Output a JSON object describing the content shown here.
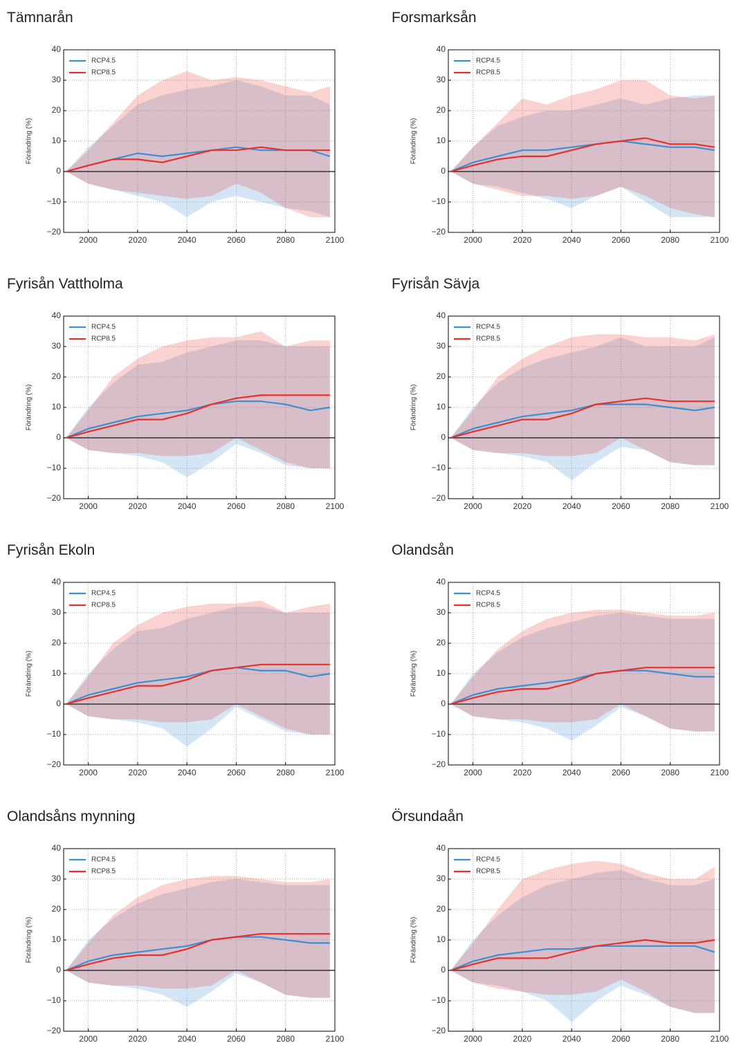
{
  "chart_data": [
    {
      "type": "line",
      "title": "Tämnarån",
      "ylabel": "Förändring (%)",
      "legend": "upper left",
      "grid": true,
      "hline": 0,
      "x": [
        1991,
        2000,
        2010,
        2020,
        2030,
        2040,
        2050,
        2060,
        2070,
        2080,
        2090,
        2098
      ],
      "xlim": [
        1990,
        2100
      ],
      "xticks": [
        2000,
        2020,
        2040,
        2060,
        2080,
        2100
      ],
      "ylim": [
        -20,
        40
      ],
      "yticks": [
        {
          "value": -20,
          "label": "−20"
        },
        {
          "value": -10,
          "label": "−10"
        },
        0,
        10,
        20,
        30,
        40
      ],
      "series": [
        {
          "name": "RCP4.5",
          "color": "#3b8fd4",
          "values": [
            0,
            2,
            4,
            6,
            5,
            6,
            7,
            8,
            7,
            7,
            7,
            5
          ],
          "upper": [
            0,
            8,
            15,
            22,
            25,
            27,
            28,
            30,
            28,
            25,
            25,
            22
          ],
          "lower": [
            0,
            -4,
            -6,
            -8,
            -10,
            -15,
            -10,
            -8,
            -10,
            -12,
            -13,
            -15
          ]
        },
        {
          "name": "RCP8.5",
          "color": "#e8302a",
          "values": [
            0,
            2,
            4,
            4,
            3,
            5,
            7,
            7,
            8,
            7,
            7,
            7
          ],
          "upper": [
            0,
            7,
            16,
            25,
            30,
            33,
            30,
            31,
            30,
            28,
            26,
            28
          ],
          "lower": [
            0,
            -4,
            -6,
            -7,
            -8,
            -9,
            -8,
            -4,
            -7,
            -12,
            -15,
            -15
          ]
        }
      ]
    },
    {
      "type": "line",
      "title": "Forsmarksån",
      "ylabel": "Förändring (%)",
      "legend": "upper left",
      "grid": true,
      "hline": 0,
      "x": [
        1991,
        2000,
        2010,
        2020,
        2030,
        2040,
        2050,
        2060,
        2070,
        2080,
        2090,
        2098
      ],
      "xlim": [
        1990,
        2100
      ],
      "xticks": [
        2000,
        2020,
        2040,
        2060,
        2080,
        2100
      ],
      "ylim": [
        -20,
        40
      ],
      "yticks": [
        {
          "value": -20,
          "label": "−20"
        },
        {
          "value": -10,
          "label": "−10"
        },
        0,
        10,
        20,
        30,
        40
      ],
      "series": [
        {
          "name": "RCP4.5",
          "color": "#3b8fd4",
          "values": [
            0,
            3,
            5,
            7,
            7,
            8,
            9,
            10,
            9,
            8,
            8,
            7
          ],
          "upper": [
            0,
            8,
            15,
            18,
            20,
            20,
            22,
            24,
            22,
            24,
            25,
            25
          ],
          "lower": [
            0,
            -4,
            -5,
            -7,
            -9,
            -12,
            -8,
            -5,
            -10,
            -15,
            -15,
            -15
          ]
        },
        {
          "name": "RCP8.5",
          "color": "#e8302a",
          "values": [
            0,
            2,
            4,
            5,
            5,
            7,
            9,
            10,
            11,
            9,
            9,
            8
          ],
          "upper": [
            0,
            8,
            16,
            24,
            22,
            25,
            27,
            30,
            30,
            25,
            24,
            25
          ],
          "lower": [
            0,
            -4,
            -6,
            -8,
            -8,
            -9,
            -8,
            -5,
            -8,
            -12,
            -14,
            -15
          ]
        }
      ]
    },
    {
      "type": "line",
      "title": "Fyrisån Vattholma",
      "ylabel": "Förändring (%)",
      "legend": "upper left",
      "grid": true,
      "hline": 0,
      "x": [
        1991,
        2000,
        2010,
        2020,
        2030,
        2040,
        2050,
        2060,
        2070,
        2080,
        2090,
        2098
      ],
      "xlim": [
        1990,
        2100
      ],
      "xticks": [
        2000,
        2020,
        2040,
        2060,
        2080,
        2100
      ],
      "ylim": [
        -20,
        40
      ],
      "yticks": [
        {
          "value": -20,
          "label": "−20"
        },
        {
          "value": -10,
          "label": "−10"
        },
        0,
        10,
        20,
        30,
        40
      ],
      "series": [
        {
          "name": "RCP4.5",
          "color": "#3b8fd4",
          "values": [
            0,
            3,
            5,
            7,
            8,
            9,
            11,
            12,
            12,
            11,
            9,
            10
          ],
          "upper": [
            0,
            10,
            18,
            24,
            25,
            28,
            30,
            32,
            32,
            30,
            30,
            30
          ],
          "lower": [
            0,
            -4,
            -5,
            -6,
            -8,
            -13,
            -8,
            -2,
            -5,
            -9,
            -10,
            -10
          ]
        },
        {
          "name": "RCP8.5",
          "color": "#e8302a",
          "values": [
            0,
            2,
            4,
            6,
            6,
            8,
            11,
            13,
            14,
            14,
            14,
            14
          ],
          "upper": [
            0,
            9,
            20,
            26,
            30,
            32,
            33,
            33,
            35,
            30,
            32,
            32
          ],
          "lower": [
            0,
            -4,
            -5,
            -5,
            -6,
            -6,
            -5,
            0,
            -4,
            -8,
            -10,
            -10
          ]
        }
      ]
    },
    {
      "type": "line",
      "title": "Fyrisån Sävja",
      "ylabel": "Förändring (%)",
      "legend": "upper left",
      "grid": true,
      "hline": 0,
      "x": [
        1991,
        2000,
        2010,
        2020,
        2030,
        2040,
        2050,
        2060,
        2070,
        2080,
        2090,
        2098
      ],
      "xlim": [
        1990,
        2100
      ],
      "xticks": [
        2000,
        2020,
        2040,
        2060,
        2080,
        2100
      ],
      "ylim": [
        -20,
        40
      ],
      "yticks": [
        {
          "value": -20,
          "label": "−20"
        },
        {
          "value": -10,
          "label": "−10"
        },
        0,
        10,
        20,
        30,
        40
      ],
      "series": [
        {
          "name": "RCP4.5",
          "color": "#3b8fd4",
          "values": [
            0,
            3,
            5,
            7,
            8,
            9,
            11,
            11,
            11,
            10,
            9,
            10
          ],
          "upper": [
            0,
            10,
            18,
            23,
            26,
            28,
            30,
            33,
            30,
            30,
            30,
            33
          ],
          "lower": [
            0,
            -4,
            -5,
            -6,
            -8,
            -14,
            -8,
            -3,
            -4,
            -8,
            -9,
            -9
          ]
        },
        {
          "name": "RCP8.5",
          "color": "#e8302a",
          "values": [
            0,
            2,
            4,
            6,
            6,
            8,
            11,
            12,
            13,
            12,
            12,
            12
          ],
          "upper": [
            0,
            9,
            20,
            26,
            30,
            33,
            34,
            34,
            33,
            33,
            32,
            34
          ],
          "lower": [
            0,
            -4,
            -5,
            -5,
            -6,
            -6,
            -5,
            0,
            -4,
            -8,
            -9,
            -9
          ]
        }
      ]
    },
    {
      "type": "line",
      "title": "Fyrisån Ekoln",
      "ylabel": "Förändring (%)",
      "legend": "upper left",
      "grid": true,
      "hline": 0,
      "x": [
        1991,
        2000,
        2010,
        2020,
        2030,
        2040,
        2050,
        2060,
        2070,
        2080,
        2090,
        2098
      ],
      "xlim": [
        1990,
        2100
      ],
      "xticks": [
        2000,
        2020,
        2040,
        2060,
        2080,
        2100
      ],
      "ylim": [
        -20,
        40
      ],
      "yticks": [
        {
          "value": -20,
          "label": "−20"
        },
        {
          "value": -10,
          "label": "−10"
        },
        0,
        10,
        20,
        30,
        40
      ],
      "series": [
        {
          "name": "RCP4.5",
          "color": "#3b8fd4",
          "values": [
            0,
            3,
            5,
            7,
            8,
            9,
            11,
            12,
            11,
            11,
            9,
            10
          ],
          "upper": [
            0,
            10,
            18,
            24,
            25,
            28,
            30,
            32,
            32,
            30,
            30,
            30
          ],
          "lower": [
            0,
            -4,
            -5,
            -6,
            -8,
            -14,
            -8,
            -1,
            -5,
            -9,
            -10,
            -10
          ]
        },
        {
          "name": "RCP8.5",
          "color": "#e8302a",
          "values": [
            0,
            2,
            4,
            6,
            6,
            8,
            11,
            12,
            13,
            13,
            13,
            13
          ],
          "upper": [
            0,
            9,
            20,
            26,
            30,
            32,
            33,
            33,
            34,
            30,
            32,
            33
          ],
          "lower": [
            0,
            -4,
            -5,
            -5,
            -6,
            -6,
            -5,
            0,
            -4,
            -8,
            -10,
            -10
          ]
        }
      ]
    },
    {
      "type": "line",
      "title": "Olandsån",
      "ylabel": "Förändring (%)",
      "legend": "upper left",
      "grid": true,
      "hline": 0,
      "x": [
        1991,
        2000,
        2010,
        2020,
        2030,
        2040,
        2050,
        2060,
        2070,
        2080,
        2090,
        2098
      ],
      "xlim": [
        1990,
        2100
      ],
      "xticks": [
        2000,
        2020,
        2040,
        2060,
        2080,
        2100
      ],
      "ylim": [
        -20,
        40
      ],
      "yticks": [
        {
          "value": -20,
          "label": "−20"
        },
        {
          "value": -10,
          "label": "−10"
        },
        0,
        10,
        20,
        30,
        40
      ],
      "series": [
        {
          "name": "RCP4.5",
          "color": "#3b8fd4",
          "values": [
            0,
            3,
            5,
            6,
            7,
            8,
            10,
            11,
            11,
            10,
            9,
            9
          ],
          "upper": [
            0,
            10,
            17,
            22,
            25,
            27,
            29,
            30,
            29,
            28,
            28,
            28
          ],
          "lower": [
            0,
            -4,
            -5,
            -6,
            -8,
            -12,
            -7,
            -1,
            -4,
            -8,
            -9,
            -9
          ]
        },
        {
          "name": "RCP8.5",
          "color": "#e8302a",
          "values": [
            0,
            2,
            4,
            5,
            5,
            7,
            10,
            11,
            12,
            12,
            12,
            12
          ],
          "upper": [
            0,
            9,
            18,
            24,
            28,
            30,
            31,
            31,
            30,
            29,
            29,
            30
          ],
          "lower": [
            0,
            -4,
            -5,
            -5,
            -6,
            -6,
            -5,
            0,
            -4,
            -8,
            -9,
            -9
          ]
        }
      ]
    },
    {
      "type": "line",
      "title": "Olandsåns mynning",
      "ylabel": "Förändring (%)",
      "legend": "upper left",
      "grid": true,
      "hline": 0,
      "x": [
        1991,
        2000,
        2010,
        2020,
        2030,
        2040,
        2050,
        2060,
        2070,
        2080,
        2090,
        2098
      ],
      "xlim": [
        1990,
        2100
      ],
      "xticks": [
        2000,
        2020,
        2040,
        2060,
        2080,
        2100
      ],
      "ylim": [
        -20,
        40
      ],
      "yticks": [
        {
          "value": -20,
          "label": "−20"
        },
        {
          "value": -10,
          "label": "−10"
        },
        0,
        10,
        20,
        30,
        40
      ],
      "series": [
        {
          "name": "RCP4.5",
          "color": "#3b8fd4",
          "values": [
            0,
            3,
            5,
            6,
            7,
            8,
            10,
            11,
            11,
            10,
            9,
            9
          ],
          "upper": [
            0,
            10,
            17,
            22,
            25,
            27,
            29,
            30,
            29,
            28,
            28,
            28
          ],
          "lower": [
            0,
            -4,
            -5,
            -6,
            -8,
            -12,
            -7,
            -1,
            -4,
            -8,
            -9,
            -9
          ]
        },
        {
          "name": "RCP8.5",
          "color": "#e8302a",
          "values": [
            0,
            2,
            4,
            5,
            5,
            7,
            10,
            11,
            12,
            12,
            12,
            12
          ],
          "upper": [
            0,
            9,
            18,
            24,
            28,
            30,
            31,
            31,
            30,
            29,
            29,
            30
          ],
          "lower": [
            0,
            -4,
            -5,
            -5,
            -6,
            -6,
            -5,
            0,
            -4,
            -8,
            -9,
            -9
          ]
        }
      ]
    },
    {
      "type": "line",
      "title": "Örsundaån",
      "ylabel": "Förändring (%)",
      "legend": "upper left",
      "grid": true,
      "hline": 0,
      "x": [
        1991,
        2000,
        2010,
        2020,
        2030,
        2040,
        2050,
        2060,
        2070,
        2080,
        2090,
        2098
      ],
      "xlim": [
        1990,
        2100
      ],
      "xticks": [
        2000,
        2020,
        2040,
        2060,
        2080,
        2100
      ],
      "ylim": [
        -20,
        40
      ],
      "yticks": [
        {
          "value": -20,
          "label": "−20"
        },
        {
          "value": -10,
          "label": "−10"
        },
        0,
        10,
        20,
        30,
        40
      ],
      "series": [
        {
          "name": "RCP4.5",
          "color": "#3b8fd4",
          "values": [
            0,
            3,
            5,
            6,
            7,
            7,
            8,
            8,
            8,
            8,
            8,
            6
          ],
          "upper": [
            0,
            10,
            18,
            24,
            28,
            30,
            32,
            33,
            30,
            28,
            28,
            30
          ],
          "lower": [
            0,
            -4,
            -5,
            -7,
            -10,
            -17,
            -10,
            -5,
            -8,
            -12,
            -14,
            -14
          ]
        },
        {
          "name": "RCP8.5",
          "color": "#e8302a",
          "values": [
            0,
            2,
            4,
            4,
            4,
            6,
            8,
            9,
            10,
            9,
            9,
            10
          ],
          "upper": [
            0,
            9,
            20,
            30,
            33,
            35,
            36,
            35,
            32,
            30,
            30,
            34
          ],
          "lower": [
            0,
            -4,
            -6,
            -7,
            -8,
            -8,
            -7,
            -3,
            -7,
            -12,
            -14,
            -14
          ]
        }
      ]
    }
  ]
}
